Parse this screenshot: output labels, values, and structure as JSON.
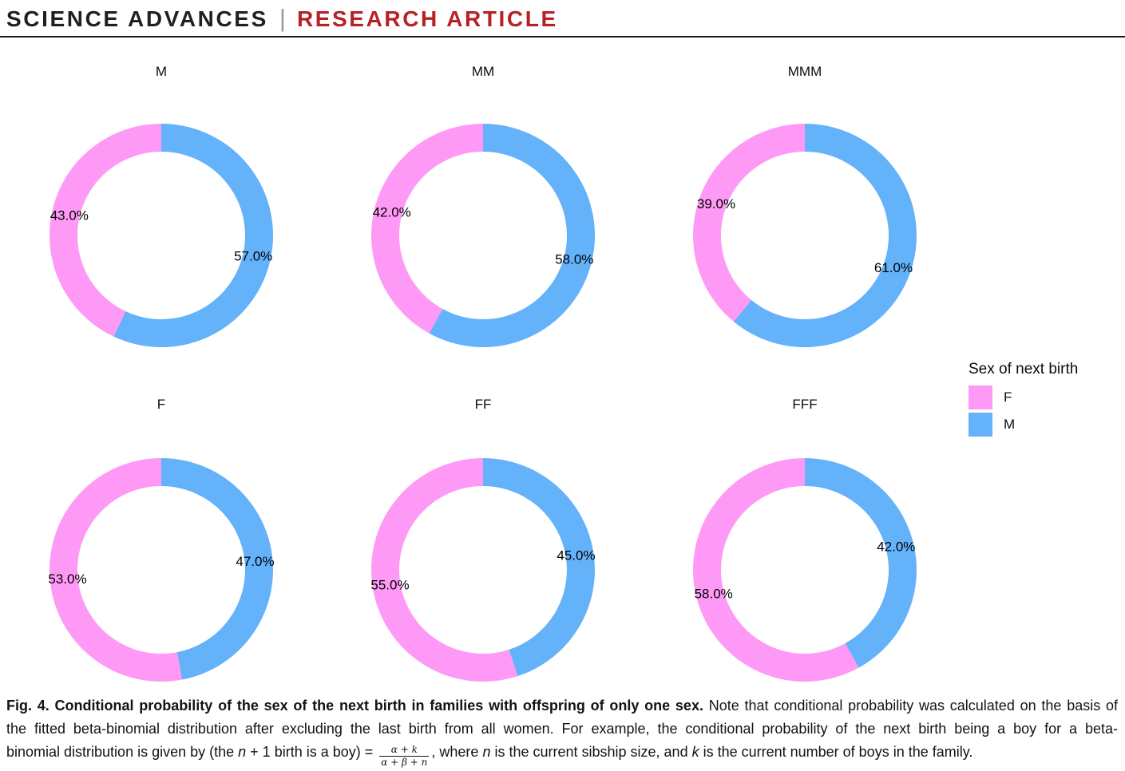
{
  "header": {
    "journal": "SCIENCE ADVANCES",
    "divider": "|",
    "article_type": "RESEARCH ARTICLE"
  },
  "colors": {
    "F": "#FE9AF6",
    "M": "#63B2FA",
    "accent_red": "#B72025",
    "rule": "#1A1A1A"
  },
  "legend": {
    "title": "Sex of next birth",
    "items": [
      {
        "label": "F"
      },
      {
        "label": "M"
      }
    ]
  },
  "chart_data": {
    "type": "pie",
    "subtype": "donut",
    "start_angle": "top",
    "direction": "male-slice-clockwise-from-top",
    "inner_radius_ratio": 0.75,
    "legend_title": "Sex of next birth",
    "legend_position": "right",
    "charts": [
      {
        "title": "M",
        "slices": [
          {
            "label": "F",
            "value": 43.0,
            "text": "43.0%"
          },
          {
            "label": "M",
            "value": 57.0,
            "text": "57.0%"
          }
        ]
      },
      {
        "title": "MM",
        "slices": [
          {
            "label": "F",
            "value": 42.0,
            "text": "42.0%"
          },
          {
            "label": "M",
            "value": 58.0,
            "text": "58.0%"
          }
        ]
      },
      {
        "title": "MMM",
        "slices": [
          {
            "label": "F",
            "value": 39.0,
            "text": "39.0%"
          },
          {
            "label": "M",
            "value": 61.0,
            "text": "61.0%"
          }
        ]
      },
      {
        "title": "F",
        "slices": [
          {
            "label": "F",
            "value": 53.0,
            "text": "53.0%"
          },
          {
            "label": "M",
            "value": 47.0,
            "text": "47.0%"
          }
        ]
      },
      {
        "title": "FF",
        "slices": [
          {
            "label": "F",
            "value": 55.0,
            "text": "55.0%"
          },
          {
            "label": "M",
            "value": 45.0,
            "text": "45.0%"
          }
        ]
      },
      {
        "title": "FFF",
        "slices": [
          {
            "label": "F",
            "value": 58.0,
            "text": "58.0%"
          },
          {
            "label": "M",
            "value": 42.0,
            "text": "42.0%"
          }
        ]
      }
    ]
  },
  "caption": {
    "line1_bold": "Fig. 4. Conditional probability of the sex of the next birth in families with offspring of only one sex.",
    "line1_rest": " Note that conditional probability was calculated on the basis of",
    "line2": "the fitted beta-binomial distribution after excluding the last birth from all women. For example, the conditional probability of the next birth being a boy for a beta-",
    "line3_pre": "binomial distribution is given by (the ",
    "line3_var_n": "n",
    "line3_mid": " + 1 birth is a boy) = ",
    "fraction_numerator": "α + k",
    "fraction_denominator": "α + β + n",
    "line3_after": ", where ",
    "line3_var_n2": "n",
    "line3_mid2": " is the current sibship size, and ",
    "line3_var_k": "k",
    "line3_end": " is the current number of boys in the family."
  }
}
